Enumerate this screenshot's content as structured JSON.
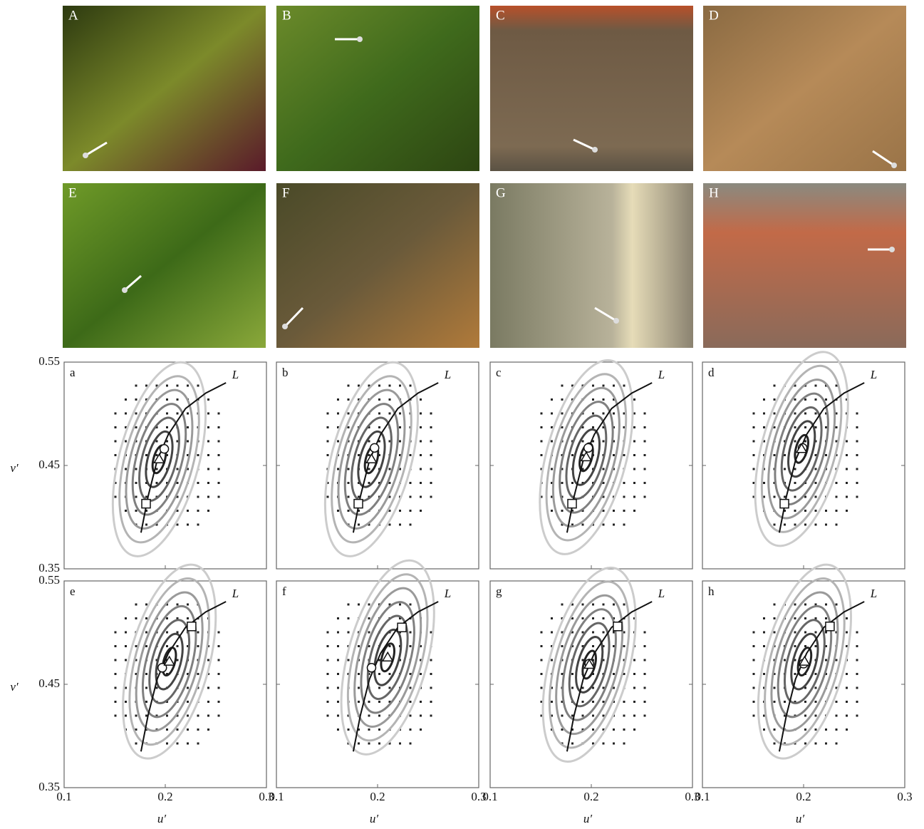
{
  "photos": [
    {
      "label": "A"
    },
    {
      "label": "B"
    },
    {
      "label": "C"
    },
    {
      "label": "D"
    },
    {
      "label": "E"
    },
    {
      "label": "F"
    },
    {
      "label": "G"
    },
    {
      "label": "H"
    }
  ],
  "plots": {
    "xlabel": "u′",
    "ylabel": "v′",
    "locus_label": "L",
    "xlim": [
      0.1,
      0.3
    ],
    "ylim": [
      0.35,
      0.55
    ],
    "xticks": [
      0.1,
      0.2,
      0.3
    ],
    "yticks": [
      0.35,
      0.45,
      0.55
    ],
    "panels": [
      {
        "label": "a",
        "circle": [
          0.199,
          0.466
        ],
        "triangle": [
          0.194,
          0.456
        ],
        "square": [
          0.181,
          0.413
        ]
      },
      {
        "label": "b",
        "circle": [
          0.197,
          0.467
        ],
        "triangle": [
          0.194,
          0.456
        ],
        "square": [
          0.181,
          0.413
        ]
      },
      {
        "label": "c",
        "circle": [
          0.197,
          0.467
        ],
        "triangle": [
          0.195,
          0.458
        ],
        "square": [
          0.181,
          0.413
        ]
      },
      {
        "label": "d",
        "circle": [
          0.199,
          0.467
        ],
        "triangle": [
          0.198,
          0.466
        ],
        "square": [
          0.181,
          0.413
        ]
      },
      {
        "label": "e",
        "circle": [
          0.197,
          0.466
        ],
        "triangle": [
          0.204,
          0.472
        ],
        "square": [
          0.226,
          0.506
        ]
      },
      {
        "label": "f",
        "circle": [
          0.194,
          0.466
        ],
        "triangle": [
          0.21,
          0.476
        ],
        "square": [
          0.224,
          0.505
        ]
      },
      {
        "label": "g",
        "circle": [
          0.198,
          0.47
        ],
        "triangle": [
          0.198,
          0.469
        ],
        "square": [
          0.226,
          0.506
        ]
      },
      {
        "label": "h",
        "circle": [
          0.2,
          0.47
        ],
        "triangle": [
          0.201,
          0.472
        ],
        "square": [
          0.226,
          0.506
        ]
      }
    ]
  }
}
